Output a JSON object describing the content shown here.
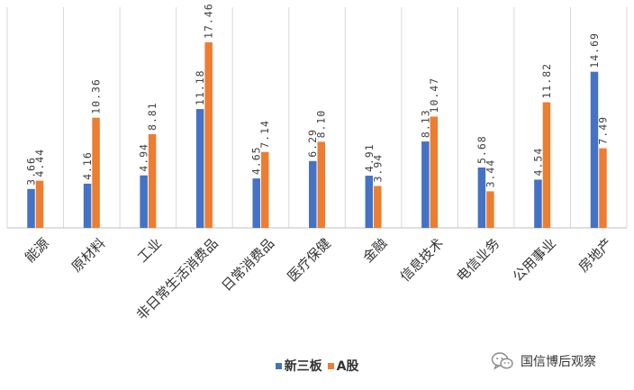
{
  "chart_data": {
    "type": "bar",
    "categories": [
      "能源",
      "原材料",
      "工业",
      "非日常生活消费品",
      "日常消费品",
      "医疗保健",
      "金融",
      "信息技术",
      "电信业务",
      "公用事业",
      "房地产"
    ],
    "series": [
      {
        "name": "新三板",
        "color": "#4472C4",
        "values": [
          3.66,
          4.16,
          4.94,
          11.18,
          4.65,
          6.29,
          4.91,
          8.13,
          5.68,
          4.54,
          14.69
        ]
      },
      {
        "name": "A股",
        "color": "#ED7D31",
        "values": [
          4.44,
          10.36,
          8.81,
          17.46,
          7.14,
          8.1,
          3.94,
          10.47,
          3.44,
          11.82,
          7.49
        ]
      }
    ],
    "value_labels": {
      "新三板": [
        "3.66",
        "4.16",
        "4.94",
        "11.18",
        "4.65",
        "6.29",
        "4.91",
        "8.13",
        "5.68",
        "4.54",
        "14.69"
      ],
      "A股": [
        "4.44",
        "10.36",
        "8.81",
        "17.46",
        "7.14",
        "8.10",
        "3.94",
        "10.47",
        "3.44",
        "11.82",
        "7.49"
      ]
    },
    "ylim": [
      0,
      18
    ],
    "y_axis_visible": false,
    "grid": "vertical category separators",
    "legend_position": "bottom"
  },
  "legend": {
    "series1": "新三板",
    "series2": "A股"
  },
  "watermark": {
    "icon": "wechat-icon",
    "text": "国信博后观察"
  }
}
